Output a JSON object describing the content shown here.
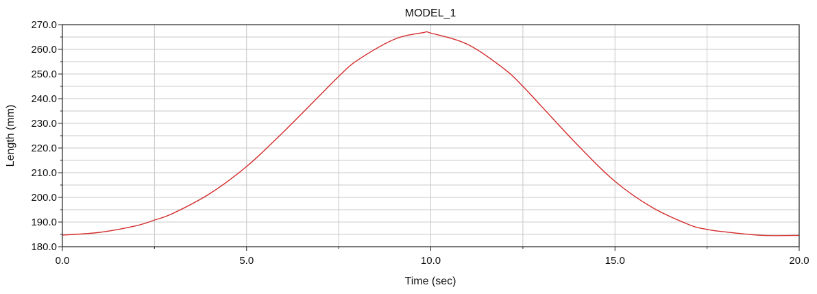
{
  "chart_data": {
    "type": "line",
    "title": "MODEL_1",
    "xlabel": "Time (sec)",
    "ylabel": "Length (mm)",
    "xlim": [
      0,
      20
    ],
    "ylim": [
      180,
      270
    ],
    "xticks": [
      0,
      5,
      10,
      15,
      20
    ],
    "xtick_labels": [
      "0.0",
      "5.0",
      "10.0",
      "15.0",
      "20.0"
    ],
    "yticks": [
      180,
      190,
      200,
      210,
      220,
      230,
      240,
      250,
      260,
      270
    ],
    "ytick_labels": [
      "180.0",
      "190.0",
      "200.0",
      "210.0",
      "220.0",
      "230.0",
      "240.0",
      "250.0",
      "260.0",
      "270.0"
    ],
    "x_minor_step": 2.5,
    "y_minor_step": 5,
    "grid": true,
    "legend": "none",
    "series": [
      {
        "color": "#d42a2a",
        "x": [
          0,
          1,
          2,
          2.5,
          3,
          4,
          5,
          6,
          7,
          7.5,
          8,
          9,
          9.8,
          10,
          11,
          12,
          12.5,
          13,
          14,
          15,
          16,
          17,
          17.5,
          18,
          19,
          20
        ],
        "y": [
          184.7,
          185.8,
          188.5,
          190.8,
          193.5,
          201.5,
          212.5,
          226.5,
          241.5,
          249.0,
          255.5,
          264.0,
          266.8,
          266.6,
          262.0,
          252.0,
          245.0,
          237.0,
          221.0,
          206.5,
          196.0,
          189.0,
          187.0,
          186.0,
          184.6,
          184.6
        ]
      }
    ]
  }
}
